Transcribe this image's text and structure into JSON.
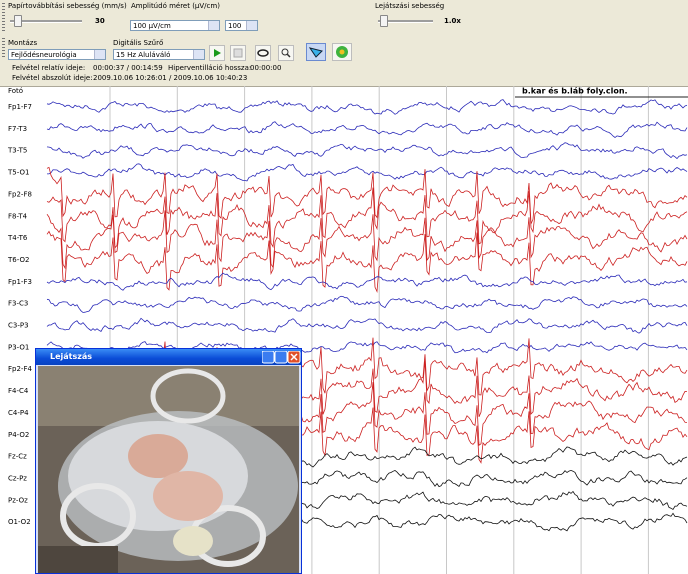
{
  "toolbar": {
    "paper_speed_label": "Papírtovábbítási sebesség (mm/s)",
    "paper_speed_value": "30",
    "amplitude_label": "Amplitúdó méret (µV/cm)",
    "amplitude_select": "100 µV/cm",
    "amplitude_spin": "100",
    "playback_label": "Lejátszási sebesség",
    "playback_value": "1.0x",
    "montage_label": "Montázs",
    "montage_select": "Fejlődésneurológia",
    "filter_label": "Digitális Szűrő",
    "filter_select": "15 Hz Aluláváló"
  },
  "info": {
    "rel_label": "Felvétel relatív ideje:",
    "rel_value": "00:00:37  /  00:14:59",
    "hv_label": "Hiperventilláció hossza:",
    "hv_value": "00:00:00",
    "abs_label": "Felvétel abszolút ideje:",
    "abs_value": "2009.10.06 10:26:01  /  2009.10.06 10:40:23"
  },
  "eeg": {
    "photic_label": "Fotó",
    "annotation": "b.kar és b.láb foly.clon.",
    "channels": [
      {
        "label": "Fp1-F7",
        "color": "#2a2ab8"
      },
      {
        "label": "F7-T3",
        "color": "#2a2ab8"
      },
      {
        "label": "T3-T5",
        "color": "#2a2ab8"
      },
      {
        "label": "T5-O1",
        "color": "#2a2ab8"
      },
      {
        "label": "Fp2-F8",
        "color": "#cc2020"
      },
      {
        "label": "F8-T4",
        "color": "#cc2020"
      },
      {
        "label": "T4-T6",
        "color": "#cc2020"
      },
      {
        "label": "T6-O2",
        "color": "#cc2020"
      },
      {
        "label": "Fp1-F3",
        "color": "#2a2ab8"
      },
      {
        "label": "F3-C3",
        "color": "#2a2ab8"
      },
      {
        "label": "C3-P3",
        "color": "#2a2ab8"
      },
      {
        "label": "P3-O1",
        "color": "#2a2ab8"
      },
      {
        "label": "Fp2-F4",
        "color": "#cc2020"
      },
      {
        "label": "F4-C4",
        "color": "#cc2020"
      },
      {
        "label": "C4-P4",
        "color": "#cc2020"
      },
      {
        "label": "P4-O2",
        "color": "#cc2020"
      },
      {
        "label": "Fz-Cz",
        "color": "#111111"
      },
      {
        "label": "Cz-Pz",
        "color": "#111111"
      },
      {
        "label": "Pz-Oz",
        "color": "#111111"
      },
      {
        "label": "O1-O2",
        "color": "#111111"
      }
    ]
  },
  "video_window": {
    "title": "Lejátszás"
  }
}
